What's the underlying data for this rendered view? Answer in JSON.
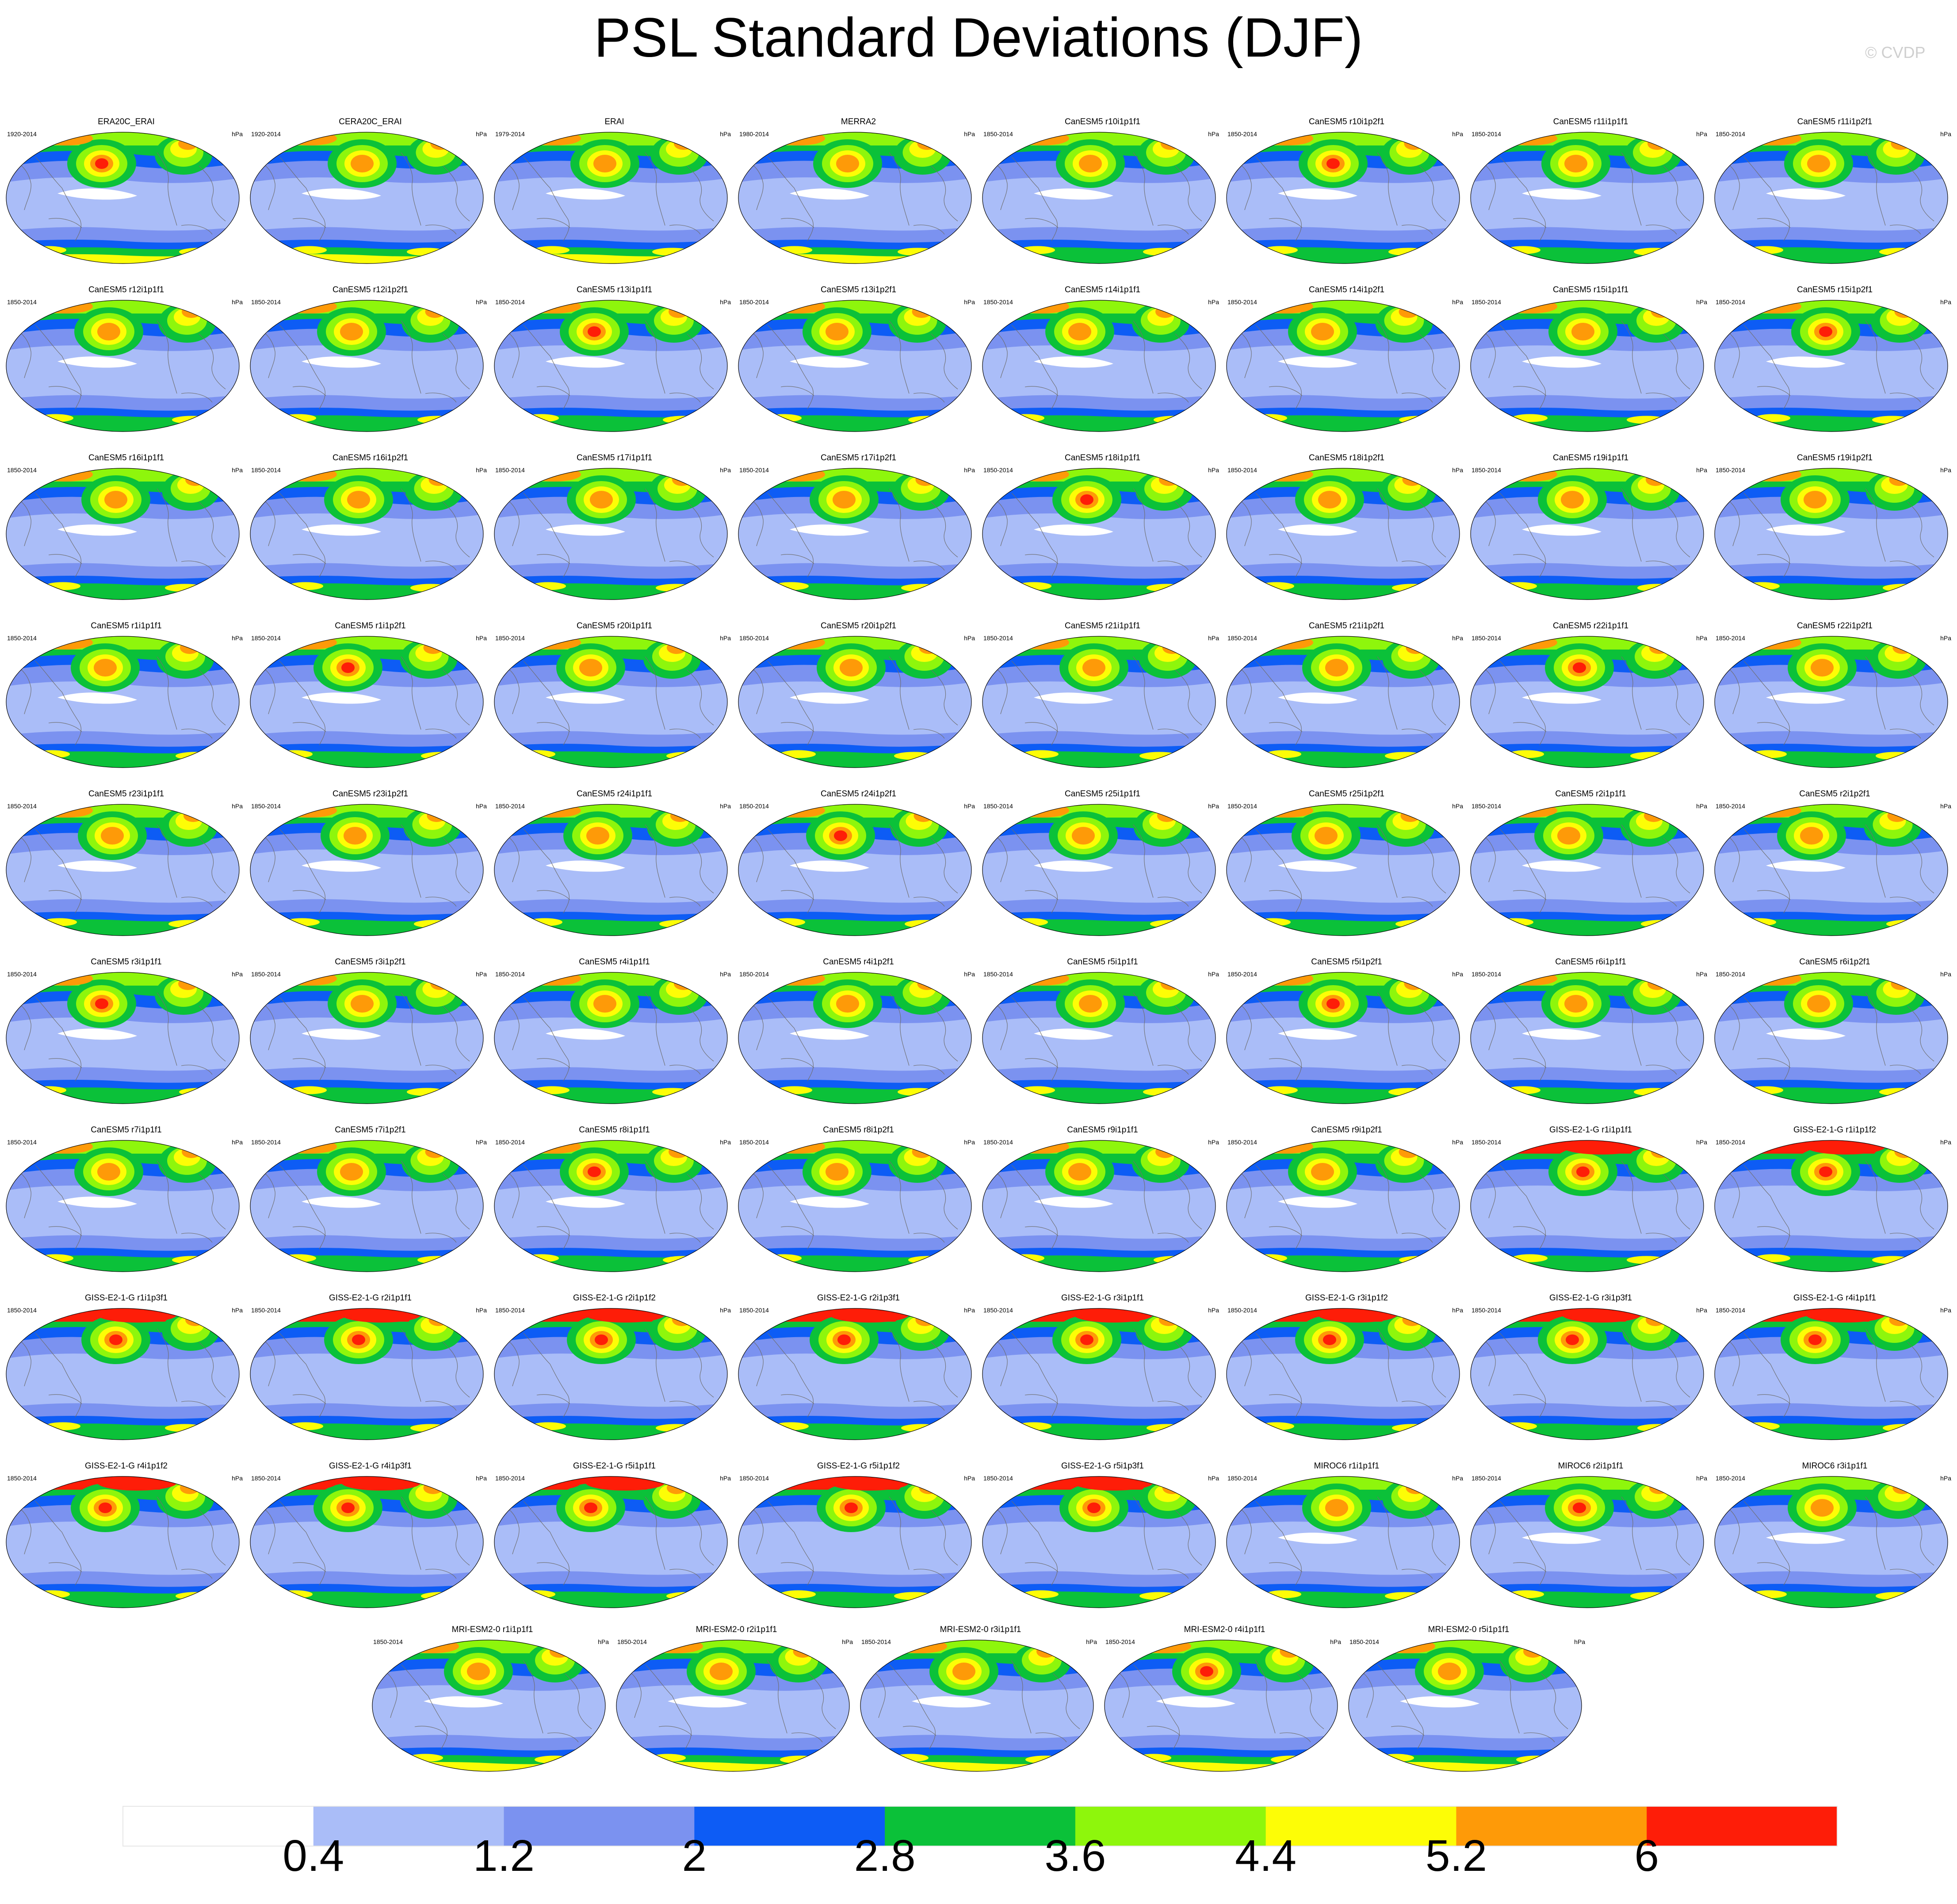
{
  "title": "PSL Standard Deviations (DJF)",
  "watermark": "© CVDP",
  "units": "hPa",
  "panels": [
    {
      "name": "ERA20C_ERAI",
      "period": "1920-2014"
    },
    {
      "name": "CERA20C_ERAI",
      "period": "1920-2014"
    },
    {
      "name": "ERAI",
      "period": "1979-2014"
    },
    {
      "name": "MERRA2",
      "period": "1980-2014"
    },
    {
      "name": "CanESM5 r10i1p1f1",
      "period": "1850-2014"
    },
    {
      "name": "CanESM5 r10i1p2f1",
      "period": "1850-2014"
    },
    {
      "name": "CanESM5 r11i1p1f1",
      "period": "1850-2014"
    },
    {
      "name": "CanESM5 r11i1p2f1",
      "period": "1850-2014"
    },
    {
      "name": "CanESM5 r12i1p1f1",
      "period": "1850-2014"
    },
    {
      "name": "CanESM5 r12i1p2f1",
      "period": "1850-2014"
    },
    {
      "name": "CanESM5 r13i1p1f1",
      "period": "1850-2014"
    },
    {
      "name": "CanESM5 r13i1p2f1",
      "period": "1850-2014"
    },
    {
      "name": "CanESM5 r14i1p1f1",
      "period": "1850-2014"
    },
    {
      "name": "CanESM5 r14i1p2f1",
      "period": "1850-2014"
    },
    {
      "name": "CanESM5 r15i1p1f1",
      "period": "1850-2014"
    },
    {
      "name": "CanESM5 r15i1p2f1",
      "period": "1850-2014"
    },
    {
      "name": "CanESM5 r16i1p1f1",
      "period": "1850-2014"
    },
    {
      "name": "CanESM5 r16i1p2f1",
      "period": "1850-2014"
    },
    {
      "name": "CanESM5 r17i1p1f1",
      "period": "1850-2014"
    },
    {
      "name": "CanESM5 r17i1p2f1",
      "period": "1850-2014"
    },
    {
      "name": "CanESM5 r18i1p1f1",
      "period": "1850-2014"
    },
    {
      "name": "CanESM5 r18i1p2f1",
      "period": "1850-2014"
    },
    {
      "name": "CanESM5 r19i1p1f1",
      "period": "1850-2014"
    },
    {
      "name": "CanESM5 r19i1p2f1",
      "period": "1850-2014"
    },
    {
      "name": "CanESM5 r1i1p1f1",
      "period": "1850-2014"
    },
    {
      "name": "CanESM5 r1i1p2f1",
      "period": "1850-2014"
    },
    {
      "name": "CanESM5 r20i1p1f1",
      "period": "1850-2014"
    },
    {
      "name": "CanESM5 r20i1p2f1",
      "period": "1850-2014"
    },
    {
      "name": "CanESM5 r21i1p1f1",
      "period": "1850-2014"
    },
    {
      "name": "CanESM5 r21i1p2f1",
      "period": "1850-2014"
    },
    {
      "name": "CanESM5 r22i1p1f1",
      "period": "1850-2014"
    },
    {
      "name": "CanESM5 r22i1p2f1",
      "period": "1850-2014"
    },
    {
      "name": "CanESM5 r23i1p1f1",
      "period": "1850-2014"
    },
    {
      "name": "CanESM5 r23i1p2f1",
      "period": "1850-2014"
    },
    {
      "name": "CanESM5 r24i1p1f1",
      "period": "1850-2014"
    },
    {
      "name": "CanESM5 r24i1p2f1",
      "period": "1850-2014"
    },
    {
      "name": "CanESM5 r25i1p1f1",
      "period": "1850-2014"
    },
    {
      "name": "CanESM5 r25i1p2f1",
      "period": "1850-2014"
    },
    {
      "name": "CanESM5 r2i1p1f1",
      "period": "1850-2014"
    },
    {
      "name": "CanESM5 r2i1p2f1",
      "period": "1850-2014"
    },
    {
      "name": "CanESM5 r3i1p1f1",
      "period": "1850-2014"
    },
    {
      "name": "CanESM5 r3i1p2f1",
      "period": "1850-2014"
    },
    {
      "name": "CanESM5 r4i1p1f1",
      "period": "1850-2014"
    },
    {
      "name": "CanESM5 r4i1p2f1",
      "period": "1850-2014"
    },
    {
      "name": "CanESM5 r5i1p1f1",
      "period": "1850-2014"
    },
    {
      "name": "CanESM5 r5i1p2f1",
      "period": "1850-2014"
    },
    {
      "name": "CanESM5 r6i1p1f1",
      "period": "1850-2014"
    },
    {
      "name": "CanESM5 r6i1p2f1",
      "period": "1850-2014"
    },
    {
      "name": "CanESM5 r7i1p1f1",
      "period": "1850-2014"
    },
    {
      "name": "CanESM5 r7i1p2f1",
      "period": "1850-2014"
    },
    {
      "name": "CanESM5 r8i1p1f1",
      "period": "1850-2014"
    },
    {
      "name": "CanESM5 r8i1p2f1",
      "period": "1850-2014"
    },
    {
      "name": "CanESM5 r9i1p1f1",
      "period": "1850-2014"
    },
    {
      "name": "CanESM5 r9i1p2f1",
      "period": "1850-2014"
    },
    {
      "name": "GISS-E2-1-G r1i1p1f1",
      "period": "1850-2014"
    },
    {
      "name": "GISS-E2-1-G r1i1p1f2",
      "period": "1850-2014"
    },
    {
      "name": "GISS-E2-1-G r1i1p3f1",
      "period": "1850-2014"
    },
    {
      "name": "GISS-E2-1-G r2i1p1f1",
      "period": "1850-2014"
    },
    {
      "name": "GISS-E2-1-G r2i1p1f2",
      "period": "1850-2014"
    },
    {
      "name": "GISS-E2-1-G r2i1p3f1",
      "period": "1850-2014"
    },
    {
      "name": "GISS-E2-1-G r3i1p1f1",
      "period": "1850-2014"
    },
    {
      "name": "GISS-E2-1-G r3i1p1f2",
      "period": "1850-2014"
    },
    {
      "name": "GISS-E2-1-G r3i1p3f1",
      "period": "1850-2014"
    },
    {
      "name": "GISS-E2-1-G r4i1p1f1",
      "period": "1850-2014"
    },
    {
      "name": "GISS-E2-1-G r4i1p1f2",
      "period": "1850-2014"
    },
    {
      "name": "GISS-E2-1-G r4i1p3f1",
      "period": "1850-2014"
    },
    {
      "name": "GISS-E2-1-G r5i1p1f1",
      "period": "1850-2014"
    },
    {
      "name": "GISS-E2-1-G r5i1p1f2",
      "period": "1850-2014"
    },
    {
      "name": "GISS-E2-1-G r5i1p3f1",
      "period": "1850-2014"
    },
    {
      "name": "MIROC6 r1i1p1f1",
      "period": "1850-2014"
    },
    {
      "name": "MIROC6 r2i1p1f1",
      "period": "1850-2014"
    },
    {
      "name": "MIROC6 r3i1p1f1",
      "period": "1850-2014"
    },
    {
      "name": "MRI-ESM2-0 r1i1p1f1",
      "period": "1850-2014"
    },
    {
      "name": "MRI-ESM2-0 r2i1p1f1",
      "period": "1850-2014"
    },
    {
      "name": "MRI-ESM2-0 r3i1p1f1",
      "period": "1850-2014"
    },
    {
      "name": "MRI-ESM2-0 r4i1p1f1",
      "period": "1850-2014"
    },
    {
      "name": "MRI-ESM2-0 r5i1p1f1",
      "period": "1850-2014"
    }
  ],
  "chart_data": {
    "type": "heatmap",
    "title": "PSL Standard Deviations (DJF)",
    "projection": "global map (Robinson-like)",
    "units": "hPa",
    "colorbar": {
      "levels": [
        0.4,
        1.2,
        2,
        2.8,
        3.6,
        4.4,
        5.2,
        6
      ],
      "tick_labels": [
        "0.4",
        "1.2",
        "2",
        "2.8",
        "3.6",
        "4.4",
        "5.2",
        "6"
      ],
      "colors": [
        "#ffffff",
        "#aabdf8",
        "#7b92f0",
        "#0d5cf5",
        "#0bc139",
        "#8ef60c",
        "#fdfd06",
        "#fe9a08",
        "#fe1d08"
      ]
    }
  }
}
